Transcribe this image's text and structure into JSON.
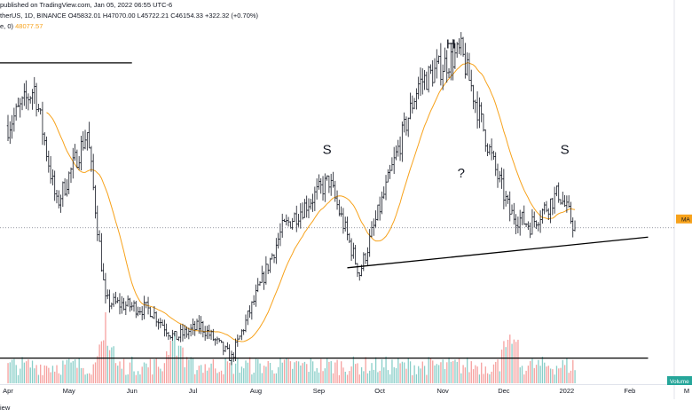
{
  "header": {
    "published": "published on TradingView.com, Jan 05, 2022 06:55 UTC-6",
    "symbol_line": "therUS, 1D, BINANCE",
    "ohlc": "O45832.01 H47070.00 L45722.21 C46154.33 +322.32 (+0.70%)",
    "ma_prefix": "e, 0)",
    "ma_value": "48077.57"
  },
  "footer_partial": "iew",
  "colors": {
    "up": "#26a69a",
    "down": "#ef5350",
    "bar_line": "#131722",
    "ma": "#f7a21b",
    "trendline": "#000000",
    "price_line": "#787b86",
    "ma_tag_bg": "#f7a21b",
    "volume_tag_bg": "#26a69a"
  },
  "chart_data": {
    "type": "ohlc",
    "interval": "1D",
    "xlim": [
      "2021-04-01",
      "2022-03-01"
    ],
    "ylim": [
      26000,
      70000
    ],
    "tick_labels": [
      {
        "label": "Apr",
        "date": "2021-04-01"
      },
      {
        "label": "May",
        "date": "2021-05-01"
      },
      {
        "label": "Jun",
        "date": "2021-06-01"
      },
      {
        "label": "Jul",
        "date": "2021-07-01"
      },
      {
        "label": "Aug",
        "date": "2021-08-01"
      },
      {
        "label": "Sep",
        "date": "2021-09-01"
      },
      {
        "label": "Oct",
        "date": "2021-10-01"
      },
      {
        "label": "Nov",
        "date": "2021-11-01"
      },
      {
        "label": "Dec",
        "date": "2021-12-01"
      },
      {
        "label": "2022",
        "date": "2022-01-01"
      },
      {
        "label": "Feb",
        "date": "2022-02-01"
      },
      {
        "label": "M",
        "date": "2022-03-01"
      }
    ],
    "price_path": [
      [
        "2021-04-01",
        58800
      ],
      [
        "2021-04-14",
        63500
      ],
      [
        "2021-04-25",
        49000
      ],
      [
        "2021-05-10",
        58000
      ],
      [
        "2021-05-19",
        37000
      ],
      [
        "2021-06-10",
        36000
      ],
      [
        "2021-06-22",
        32500
      ],
      [
        "2021-07-05",
        34000
      ],
      [
        "2021-07-20",
        30000
      ],
      [
        "2021-08-14",
        46000
      ],
      [
        "2021-09-06",
        52000
      ],
      [
        "2021-09-21",
        40500
      ],
      [
        "2021-10-20",
        64000
      ],
      [
        "2021-11-10",
        68000
      ],
      [
        "2021-11-26",
        54000
      ],
      [
        "2021-12-04",
        48000
      ],
      [
        "2021-12-14",
        46500
      ],
      [
        "2021-12-28",
        50500
      ],
      [
        "2022-01-05",
        46154
      ]
    ],
    "last_bar": {
      "date": "2022-01-05",
      "open": 45832.01,
      "high": 47070.0,
      "low": 45722.21,
      "close": 46154.33
    },
    "ma_last": 48077.57,
    "volume_spikes": [
      "2021-05-19",
      "2021-06-22",
      "2021-12-04"
    ],
    "price_scale_tag": "MA",
    "volume_tag": "Volume",
    "annotations": [
      {
        "text": "S",
        "date": "2021-09-05",
        "price": 55300
      },
      {
        "text": "H",
        "date": "2021-11-05",
        "price": 68400
      },
      {
        "text": "?",
        "date": "2021-11-10",
        "price": 52400
      },
      {
        "text": "S",
        "date": "2021-12-31",
        "price": 55300
      }
    ],
    "trendlines": [
      {
        "from": [
          "2021-03-28",
          66600
        ],
        "to": [
          "2021-06-01",
          66600
        ]
      },
      {
        "from": [
          "2021-03-28",
          30000
        ],
        "to": [
          "2022-02-10",
          30000
        ]
      },
      {
        "from": [
          "2021-09-15",
          41200
        ],
        "to": [
          "2022-02-10",
          45000
        ]
      }
    ]
  }
}
